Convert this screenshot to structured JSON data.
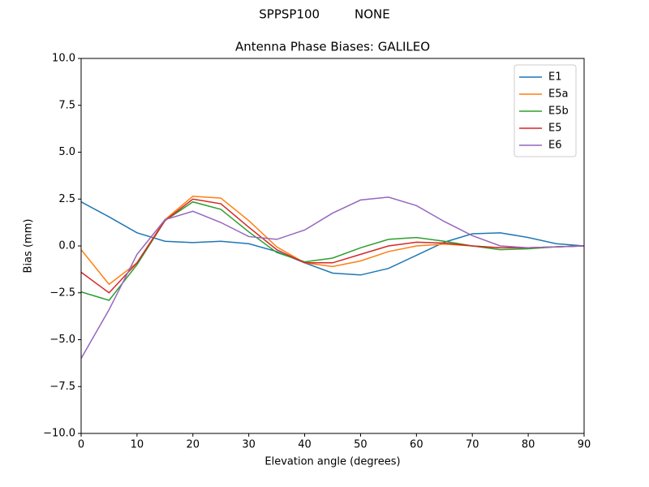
{
  "chart_data": {
    "type": "line",
    "suptitle": "SPPSP100         NONE",
    "title": "Antenna Phase Biases: GALILEO",
    "xlabel": "Elevation angle (degrees)",
    "ylabel": "Bias (mm)",
    "x": [
      0,
      5,
      10,
      15,
      20,
      25,
      30,
      35,
      40,
      45,
      50,
      55,
      60,
      65,
      70,
      75,
      80,
      85,
      90
    ],
    "series": [
      {
        "name": "E1",
        "color": "#1f77b4",
        "values": [
          2.35,
          1.55,
          0.7,
          0.25,
          0.18,
          0.25,
          0.12,
          -0.3,
          -0.9,
          -1.45,
          -1.55,
          -1.2,
          -0.5,
          0.2,
          0.65,
          0.7,
          0.45,
          0.12,
          0.0
        ]
      },
      {
        "name": "E5a",
        "color": "#ff7f0e",
        "values": [
          -0.2,
          -2.05,
          -0.9,
          1.4,
          2.65,
          2.55,
          1.35,
          -0.05,
          -0.9,
          -1.1,
          -0.8,
          -0.3,
          0.0,
          0.1,
          0.0,
          -0.1,
          -0.1,
          -0.05,
          0.0
        ]
      },
      {
        "name": "E5b",
        "color": "#2ca02c",
        "values": [
          -2.45,
          -2.9,
          -1.0,
          1.35,
          2.35,
          1.95,
          0.75,
          -0.35,
          -0.85,
          -0.65,
          -0.1,
          0.35,
          0.45,
          0.25,
          0.0,
          -0.2,
          -0.15,
          -0.05,
          0.0
        ]
      },
      {
        "name": "E5",
        "color": "#d62728",
        "values": [
          -1.4,
          -2.5,
          -0.9,
          1.35,
          2.5,
          2.25,
          1.0,
          -0.2,
          -0.9,
          -0.9,
          -0.45,
          0.0,
          0.2,
          0.15,
          0.0,
          -0.1,
          -0.1,
          -0.05,
          0.0
        ]
      },
      {
        "name": "E6",
        "color": "#9467bd",
        "values": [
          -6.0,
          -3.4,
          -0.45,
          1.4,
          1.85,
          1.25,
          0.5,
          0.35,
          0.85,
          1.75,
          2.45,
          2.6,
          2.15,
          1.3,
          0.55,
          0.0,
          -0.1,
          -0.05,
          0.0
        ]
      }
    ],
    "xlim": [
      0,
      90
    ],
    "xticks": [
      0,
      10,
      20,
      30,
      40,
      50,
      60,
      70,
      80,
      90
    ],
    "ylim": [
      -10,
      10
    ],
    "yticks": [
      {
        "value": -10,
        "label": "−10.0"
      },
      {
        "value": -7.5,
        "label": "−7.5"
      },
      {
        "value": -5,
        "label": "−5.0"
      },
      {
        "value": -2.5,
        "label": "−2.5"
      },
      {
        "value": 0,
        "label": "0.0"
      },
      {
        "value": 2.5,
        "label": "2.5"
      },
      {
        "value": 5,
        "label": "5.0"
      },
      {
        "value": 7.5,
        "label": "7.5"
      },
      {
        "value": 10,
        "label": "10.0"
      }
    ],
    "legend": "upper right"
  }
}
